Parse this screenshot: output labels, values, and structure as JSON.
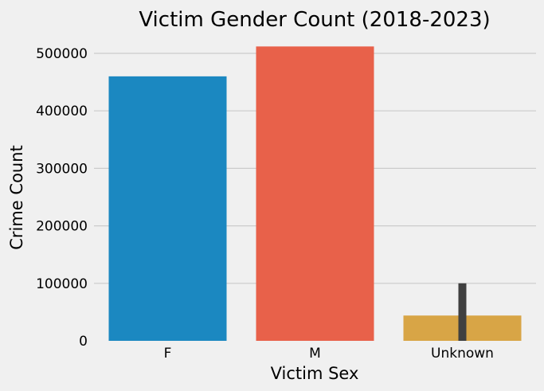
{
  "chart_data": {
    "type": "bar",
    "title": "Victim Gender Count (2018-2023)",
    "xlabel": "Victim Sex",
    "ylabel": "Crime Count",
    "categories": [
      "F",
      "M",
      "Unknown"
    ],
    "values": [
      460000,
      512000,
      44000
    ],
    "error_bars": [
      null,
      null,
      {
        "low": 0,
        "high": 100000
      }
    ],
    "colors": [
      "#1b88c1",
      "#e8614a",
      "#d8a546"
    ],
    "error_bar_color": "#404040",
    "ylim": [
      0,
      520000
    ],
    "yticks": [
      0,
      100000,
      200000,
      300000,
      400000,
      500000
    ],
    "ytick_labels": [
      "0",
      "100000",
      "200000",
      "300000",
      "400000",
      "500000"
    ],
    "grid": "horizontal",
    "legend": "none",
    "background": "#f0f0f0",
    "grid_color": "#cbcbcb"
  }
}
